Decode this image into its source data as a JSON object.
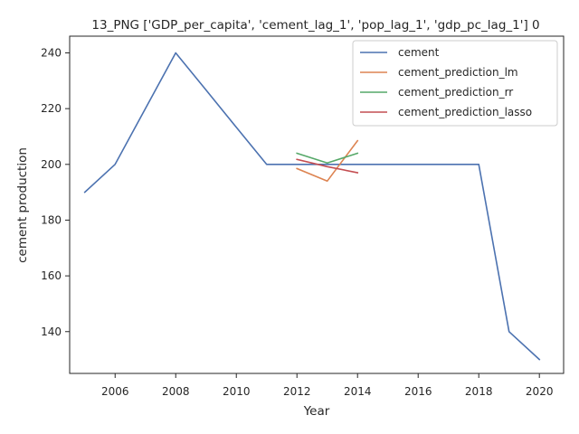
{
  "chart_data": {
    "type": "line",
    "title": "13_PNG ['GDP_per_capita', 'cement_lag_1', 'pop_lag_1', 'gdp_pc_lag_1'] 0",
    "xlabel": "Year",
    "ylabel": "cement production",
    "xlim": [
      2004.5,
      2020.8
    ],
    "ylim": [
      125,
      246
    ],
    "xticks": [
      2006,
      2008,
      2010,
      2012,
      2014,
      2016,
      2018,
      2020
    ],
    "yticks": [
      140,
      160,
      180,
      200,
      220,
      240
    ],
    "grid": false,
    "legend_position": "top-right",
    "series": [
      {
        "name": "cement",
        "color": "#4c72b0",
        "x": [
          2005,
          2006,
          2007,
          2008,
          2009,
          2010,
          2011,
          2012,
          2013,
          2014,
          2015,
          2016,
          2017,
          2018,
          2019,
          2020
        ],
        "y": [
          190,
          200,
          220,
          240,
          226.7,
          213.3,
          200,
          200,
          200,
          200,
          200,
          200,
          200,
          200,
          140,
          130
        ]
      },
      {
        "name": "cement_prediction_lm",
        "color": "#dd8452",
        "x": [
          2012,
          2013,
          2014
        ],
        "y": [
          198.5,
          194,
          208.5
        ]
      },
      {
        "name": "cement_prediction_rr",
        "color": "#55a868",
        "x": [
          2012,
          2013,
          2014
        ],
        "y": [
          204,
          200.5,
          204
        ]
      },
      {
        "name": "cement_prediction_lasso",
        "color": "#c44e52",
        "x": [
          2012,
          2013,
          2014
        ],
        "y": [
          201.8,
          199.2,
          197
        ]
      }
    ]
  }
}
